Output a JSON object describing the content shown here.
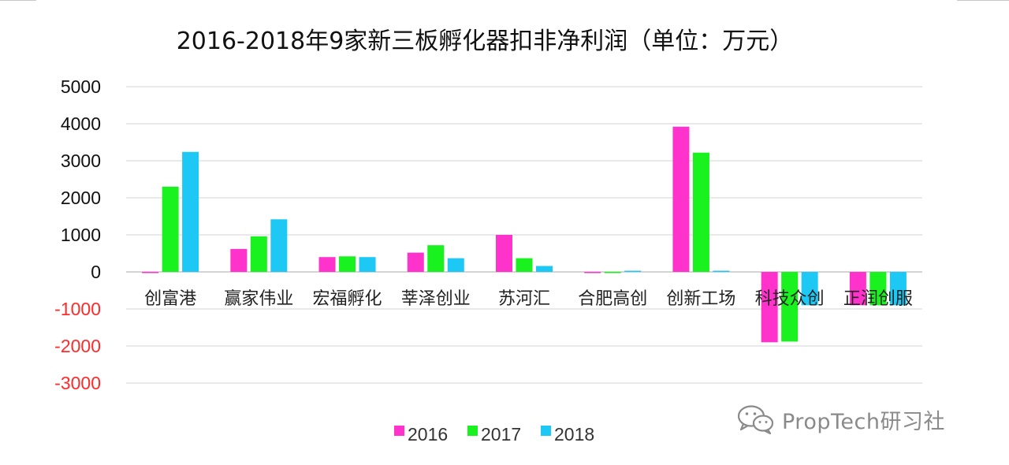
{
  "chart_data": {
    "type": "bar",
    "title": "2016-2018年9家新三板孵化器扣非净利润（单位：万元）",
    "xlabel": "",
    "ylabel": "",
    "categories": [
      "创富港",
      "赢家伟业",
      "宏福孵化",
      "莘泽创业",
      "苏河汇",
      "合肥高创",
      "创新工场",
      "科技众创",
      "正润创服"
    ],
    "series": [
      {
        "name": "2016",
        "color": "#ff33cc",
        "values": [
          -30,
          620,
          400,
          520,
          1000,
          -30,
          3920,
          -1900,
          -900
        ]
      },
      {
        "name": "2017",
        "color": "#19f21e",
        "values": [
          2300,
          960,
          420,
          720,
          370,
          -30,
          3220,
          -1880,
          -900
        ]
      },
      {
        "name": "2018",
        "color": "#1ec8f5",
        "values": [
          3240,
          1420,
          400,
          370,
          160,
          30,
          20,
          -900,
          -900
        ]
      }
    ],
    "yticks": [
      5000,
      4000,
      3000,
      2000,
      1000,
      0,
      -1000,
      -2000,
      -3000
    ],
    "ylim": [
      -3000,
      5000
    ],
    "grid": true,
    "legend_position": "bottom",
    "negative_tick_color": "#ff2a2a",
    "positive_tick_color": "#111111"
  },
  "watermark": {
    "text": "PropTech研习社",
    "icon": "wechat-icon"
  }
}
